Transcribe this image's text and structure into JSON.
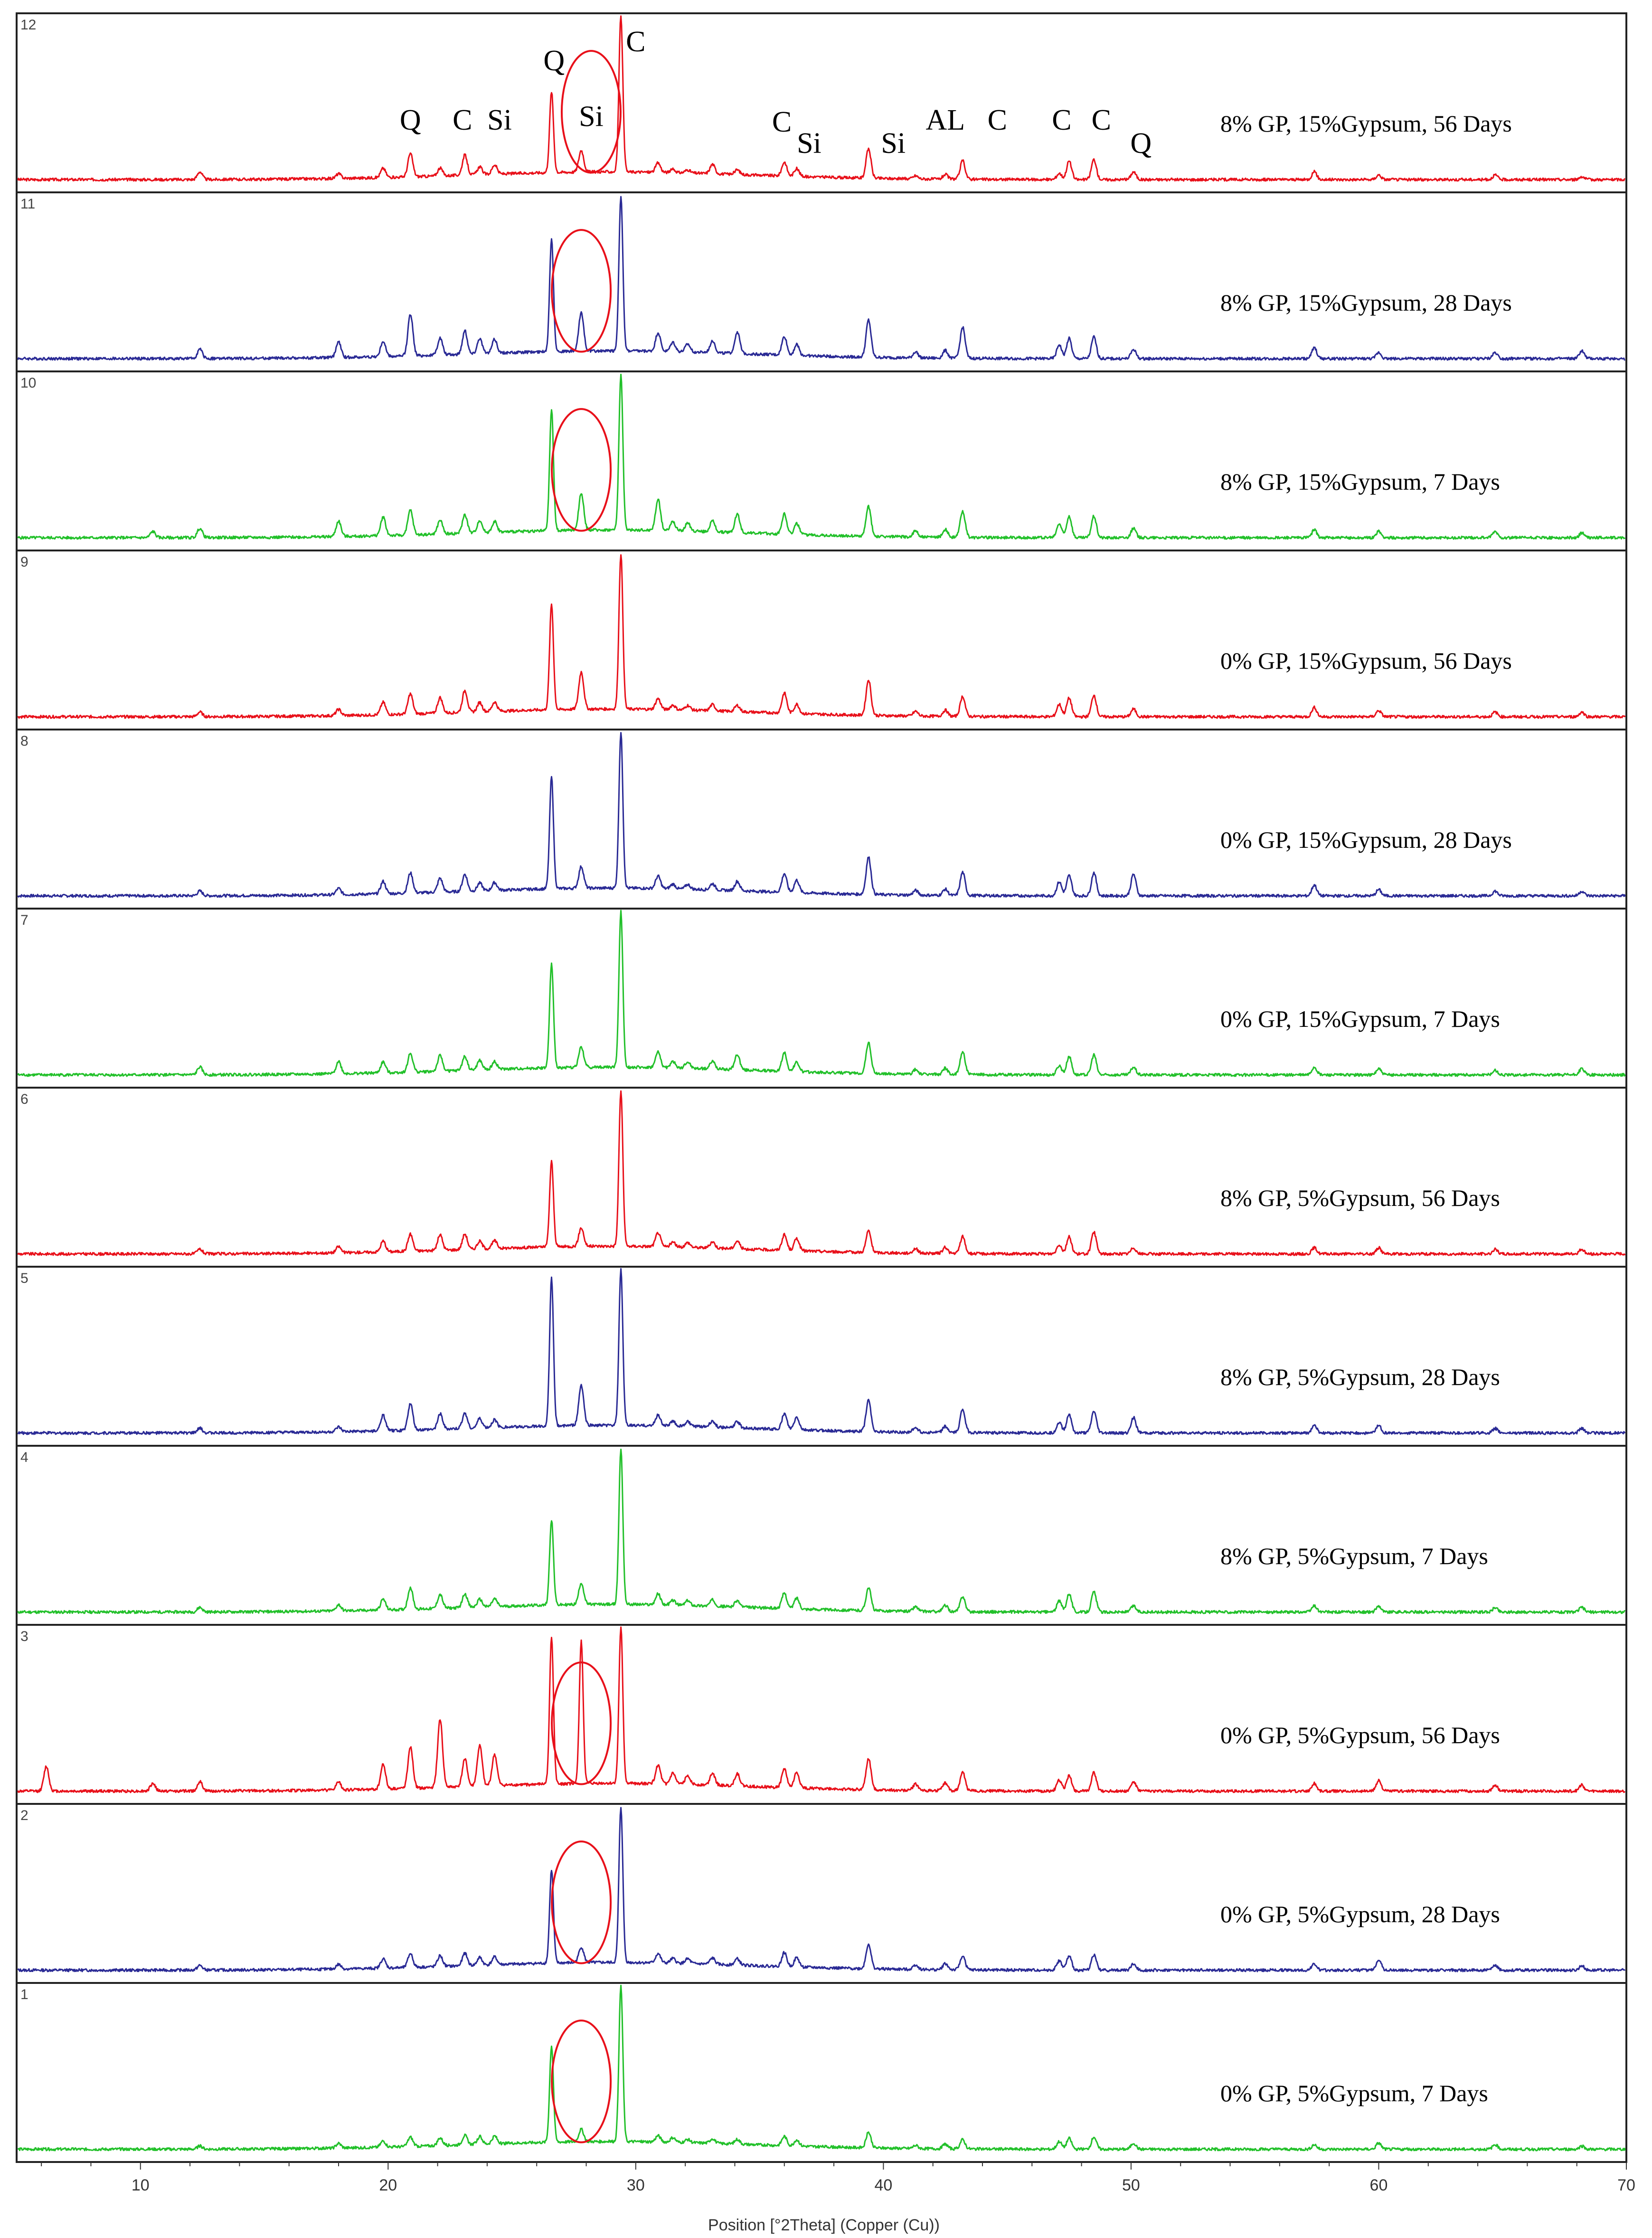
{
  "chart_data": {
    "type": "line",
    "title": "",
    "xlabel": "Position [°2Theta] (Copper (Cu))",
    "ylabel": "",
    "xlim": [
      5,
      70
    ],
    "x_ticks": [
      "10",
      "20",
      "30",
      "40",
      "50",
      "60",
      "70"
    ],
    "grid": false,
    "legend": "none",
    "peak_positions": [
      6.2,
      10.5,
      12.4,
      18.0,
      19.8,
      20.9,
      22.1,
      23.1,
      23.7,
      24.3,
      26.6,
      27.8,
      29.4,
      30.9,
      31.5,
      32.1,
      33.1,
      34.1,
      36.0,
      36.5,
      39.4,
      41.3,
      42.5,
      43.2,
      47.1,
      47.5,
      48.5,
      50.1,
      57.4,
      60.0,
      64.7,
      68.2
    ],
    "phase_labels": [
      {
        "text": "Q",
        "x": 20.9
      },
      {
        "text": "C",
        "x": 23.0
      },
      {
        "text": "Si",
        "x": 24.5
      },
      {
        "text": "Q",
        "x": 26.7
      },
      {
        "text": "Si",
        "x": 28.2
      },
      {
        "text": "C",
        "x": 30.0
      },
      {
        "text": "C",
        "x": 35.9
      },
      {
        "text": "Si",
        "x": 37.0
      },
      {
        "text": "Si",
        "x": 40.4
      },
      {
        "text": "AL",
        "x": 42.5
      },
      {
        "text": "C",
        "x": 44.6
      },
      {
        "text": "C",
        "x": 47.2
      },
      {
        "text": "C",
        "x": 48.8
      },
      {
        "text": "Q",
        "x": 50.4
      }
    ],
    "series": [
      {
        "number": "12",
        "name": "8% GP, 15%Gypsum, 56 Days",
        "color": "#e8101a",
        "peaks": [
          0,
          0,
          0.05,
          0.03,
          0.06,
          0.15,
          0.05,
          0.13,
          0.05,
          0.06,
          0.52,
          0.14,
          1.0,
          0.06,
          0.02,
          0.02,
          0.06,
          0.03,
          0.09,
          0.05,
          0.19,
          0.02,
          0.03,
          0.12,
          0.04,
          0.12,
          0.13,
          0.05,
          0.05,
          0.03,
          0.03,
          0.02
        ],
        "circle_x": 28.2
      },
      {
        "number": "11",
        "name": "8% GP, 15%Gypsum, 28 Days",
        "color": "#2a2a95",
        "peaks": [
          0,
          0,
          0.06,
          0.1,
          0.1,
          0.27,
          0.11,
          0.15,
          0.1,
          0.09,
          0.73,
          0.25,
          1.0,
          0.12,
          0.06,
          0.05,
          0.08,
          0.14,
          0.12,
          0.07,
          0.24,
          0.04,
          0.05,
          0.2,
          0.09,
          0.13,
          0.14,
          0.06,
          0.07,
          0.04,
          0.04,
          0.05
        ],
        "circle_x": 27.8
      },
      {
        "number": "10",
        "name": "8% GP, 15%Gypsum, 7 Days",
        "color": "#22c02a",
        "peaks": [
          0,
          0.04,
          0.06,
          0.1,
          0.12,
          0.16,
          0.09,
          0.12,
          0.08,
          0.07,
          0.78,
          0.24,
          1.0,
          0.2,
          0.06,
          0.05,
          0.07,
          0.12,
          0.13,
          0.07,
          0.19,
          0.04,
          0.05,
          0.17,
          0.09,
          0.14,
          0.14,
          0.06,
          0.05,
          0.04,
          0.04,
          0.03
        ],
        "circle_x": 27.8
      },
      {
        "number": "9",
        "name": "0% GP, 15%Gypsum, 56 Days",
        "color": "#e8101a",
        "peaks": [
          0,
          0,
          0.03,
          0.04,
          0.08,
          0.13,
          0.1,
          0.14,
          0.06,
          0.06,
          0.68,
          0.24,
          1.0,
          0.07,
          0.03,
          0.03,
          0.04,
          0.04,
          0.13,
          0.06,
          0.23,
          0.03,
          0.04,
          0.13,
          0.08,
          0.12,
          0.14,
          0.05,
          0.06,
          0.04,
          0.03,
          0.03
        ],
        "circle_x": null
      },
      {
        "number": "8",
        "name": "0% GP, 15%Gypsum, 28 Days",
        "color": "#2a2a95",
        "peaks": [
          0,
          0,
          0.03,
          0.04,
          0.08,
          0.13,
          0.09,
          0.11,
          0.05,
          0.05,
          0.72,
          0.14,
          1.0,
          0.08,
          0.03,
          0.03,
          0.04,
          0.06,
          0.12,
          0.08,
          0.24,
          0.03,
          0.04,
          0.15,
          0.09,
          0.13,
          0.15,
          0.14,
          0.07,
          0.04,
          0.03,
          0.03
        ],
        "circle_x": null
      },
      {
        "number": "7",
        "name": "0% GP, 15%Gypsum, 7 Days",
        "color": "#22c02a",
        "peaks": [
          0,
          0,
          0.05,
          0.08,
          0.07,
          0.12,
          0.1,
          0.09,
          0.06,
          0.05,
          0.67,
          0.13,
          1.0,
          0.1,
          0.04,
          0.04,
          0.05,
          0.1,
          0.12,
          0.06,
          0.2,
          0.03,
          0.04,
          0.15,
          0.06,
          0.12,
          0.13,
          0.05,
          0.05,
          0.04,
          0.03,
          0.04
        ],
        "circle_x": null
      },
      {
        "number": "6",
        "name": "8% GP, 5%Gypsum, 56 Days",
        "color": "#e8101a",
        "peaks": [
          0,
          0,
          0.03,
          0.04,
          0.07,
          0.11,
          0.1,
          0.1,
          0.05,
          0.05,
          0.55,
          0.12,
          1.0,
          0.09,
          0.03,
          0.03,
          0.04,
          0.05,
          0.1,
          0.08,
          0.14,
          0.03,
          0.04,
          0.11,
          0.06,
          0.11,
          0.14,
          0.04,
          0.04,
          0.04,
          0.03,
          0.03
        ],
        "circle_x": null
      },
      {
        "number": "5",
        "name": "8% GP, 5%Gypsum, 28 Days",
        "color": "#2a2a95",
        "peaks": [
          0,
          0,
          0.03,
          0.03,
          0.1,
          0.17,
          0.1,
          0.1,
          0.06,
          0.05,
          0.95,
          0.26,
          1.0,
          0.07,
          0.03,
          0.03,
          0.04,
          0.04,
          0.1,
          0.08,
          0.2,
          0.03,
          0.04,
          0.15,
          0.07,
          0.12,
          0.14,
          0.1,
          0.05,
          0.05,
          0.03,
          0.03
        ],
        "circle_x": null
      },
      {
        "number": "4",
        "name": "8% GP, 5%Gypsum, 7 Days",
        "color": "#22c02a",
        "peaks": [
          0,
          0,
          0.03,
          0.04,
          0.07,
          0.14,
          0.09,
          0.09,
          0.05,
          0.05,
          0.55,
          0.14,
          1.0,
          0.07,
          0.03,
          0.03,
          0.04,
          0.04,
          0.1,
          0.07,
          0.15,
          0.03,
          0.04,
          0.1,
          0.07,
          0.12,
          0.13,
          0.04,
          0.04,
          0.04,
          0.03,
          0.03
        ],
        "circle_x": null
      },
      {
        "number": "3",
        "name": "0% GP, 5%Gypsum, 56  Days",
        "color": "#e8101a",
        "peaks": [
          0.16,
          0.05,
          0.06,
          0.05,
          0.16,
          0.27,
          0.44,
          0.18,
          0.26,
          0.2,
          0.95,
          0.92,
          1.0,
          0.12,
          0.07,
          0.06,
          0.08,
          0.08,
          0.12,
          0.1,
          0.2,
          0.04,
          0.05,
          0.12,
          0.07,
          0.1,
          0.12,
          0.06,
          0.05,
          0.07,
          0.04,
          0.04
        ],
        "circle_x": 27.8
      },
      {
        "number": "2",
        "name": "0% GP, 5%Gypsum, 28 Days",
        "color": "#2a2a95",
        "peaks": [
          0,
          0,
          0.03,
          0.03,
          0.06,
          0.09,
          0.07,
          0.08,
          0.05,
          0.05,
          0.6,
          0.1,
          1.0,
          0.06,
          0.03,
          0.03,
          0.04,
          0.04,
          0.09,
          0.06,
          0.16,
          0.03,
          0.04,
          0.09,
          0.06,
          0.09,
          0.1,
          0.04,
          0.04,
          0.07,
          0.03,
          0.03
        ],
        "circle_x": 27.8
      },
      {
        "number": "1",
        "name": "0% GP, 5%Gypsum, 7 Days",
        "color": "#22c02a",
        "peaks": [
          0,
          0,
          0.02,
          0.03,
          0.04,
          0.06,
          0.05,
          0.06,
          0.05,
          0.05,
          0.62,
          0.08,
          1.0,
          0.04,
          0.03,
          0.02,
          0.03,
          0.03,
          0.06,
          0.04,
          0.1,
          0.02,
          0.03,
          0.06,
          0.05,
          0.07,
          0.08,
          0.04,
          0.03,
          0.04,
          0.03,
          0.02
        ],
        "circle_x": 27.8
      }
    ]
  }
}
